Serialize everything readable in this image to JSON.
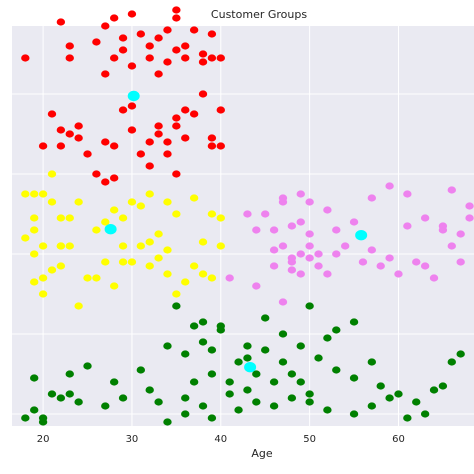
{
  "chart_data": {
    "type": "scatter",
    "title": "Customer Groups",
    "xlabel": "Age",
    "ylabel": "",
    "xlim": [
      16.5,
      68.5
    ],
    "x_ticks": [
      20,
      30,
      40,
      50,
      60
    ],
    "x_tick_labels": [
      "20",
      "30",
      "40",
      "50",
      "60"
    ],
    "ylim": [
      0,
      100
    ],
    "y_gridlines": [
      3,
      23,
      43,
      63,
      83
    ],
    "y_tick_labels_visible": false,
    "grid": true,
    "legend": "none",
    "series": [
      {
        "color": "#ff0000",
        "points": [
          [
            18,
            92
          ],
          [
            22,
            101
          ],
          [
            23,
            95
          ],
          [
            23,
            92
          ],
          [
            26,
            96
          ],
          [
            27,
            100
          ],
          [
            27,
            88
          ],
          [
            28,
            102
          ],
          [
            28,
            92
          ],
          [
            29,
            97
          ],
          [
            29,
            94
          ],
          [
            30,
            90
          ],
          [
            30,
            103
          ],
          [
            31,
            98
          ],
          [
            32,
            95
          ],
          [
            32,
            92
          ],
          [
            33,
            97
          ],
          [
            33,
            88
          ],
          [
            34,
            99
          ],
          [
            34,
            91
          ],
          [
            35,
            104
          ],
          [
            35,
            102
          ],
          [
            35,
            94
          ],
          [
            36,
            92
          ],
          [
            36,
            95
          ],
          [
            37,
            99
          ],
          [
            38,
            93
          ],
          [
            38,
            91
          ],
          [
            39,
            92
          ],
          [
            39,
            98
          ],
          [
            40,
            92
          ],
          [
            40,
            79
          ],
          [
            21,
            78
          ],
          [
            22,
            74
          ],
          [
            23,
            73
          ],
          [
            24,
            72
          ],
          [
            20,
            70
          ],
          [
            22,
            70
          ],
          [
            24,
            75
          ],
          [
            25,
            68
          ],
          [
            27,
            71
          ],
          [
            28,
            70
          ],
          [
            29,
            79
          ],
          [
            30,
            80
          ],
          [
            30,
            74
          ],
          [
            31,
            68
          ],
          [
            32,
            65
          ],
          [
            32,
            71
          ],
          [
            33,
            75
          ],
          [
            33,
            73
          ],
          [
            34,
            71
          ],
          [
            34,
            68
          ],
          [
            35,
            77
          ],
          [
            35,
            75
          ],
          [
            35,
            63
          ],
          [
            36,
            79
          ],
          [
            36,
            72
          ],
          [
            37,
            78
          ],
          [
            38,
            83
          ],
          [
            39,
            70
          ],
          [
            39,
            72
          ],
          [
            40,
            70
          ],
          [
            26,
            63
          ],
          [
            27,
            61
          ],
          [
            28,
            62
          ]
        ]
      },
      {
        "color": "#ffff00",
        "points": [
          [
            18,
            58
          ],
          [
            19,
            58
          ],
          [
            19,
            52
          ],
          [
            20,
            58
          ],
          [
            19,
            49
          ],
          [
            18,
            47
          ],
          [
            19,
            43
          ],
          [
            20,
            45
          ],
          [
            21,
            56
          ],
          [
            22,
            52
          ],
          [
            23,
            52
          ],
          [
            24,
            56
          ],
          [
            22,
            45
          ],
          [
            23,
            45
          ],
          [
            26,
            49
          ],
          [
            27,
            51
          ],
          [
            28,
            54
          ],
          [
            29,
            52
          ],
          [
            30,
            56
          ],
          [
            31,
            55
          ],
          [
            32,
            58
          ],
          [
            34,
            56
          ],
          [
            33,
            48
          ],
          [
            32,
            46
          ],
          [
            34,
            44
          ],
          [
            35,
            53
          ],
          [
            37,
            57
          ],
          [
            38,
            46
          ],
          [
            39,
            53
          ],
          [
            40,
            52
          ],
          [
            37,
            40
          ],
          [
            38,
            38
          ],
          [
            39,
            37
          ],
          [
            40,
            45
          ],
          [
            19,
            36
          ],
          [
            20,
            33
          ],
          [
            21,
            39
          ],
          [
            22,
            40
          ],
          [
            27,
            41
          ],
          [
            26,
            37
          ],
          [
            28,
            35
          ],
          [
            29,
            41
          ],
          [
            31,
            45
          ],
          [
            32,
            40
          ],
          [
            33,
            42
          ],
          [
            34,
            38
          ],
          [
            35,
            33
          ],
          [
            36,
            36
          ],
          [
            20,
            37
          ],
          [
            22,
            45
          ],
          [
            24,
            30
          ],
          [
            25,
            37
          ],
          [
            21,
            63
          ],
          [
            30,
            41
          ],
          [
            29,
            45
          ]
        ]
      },
      {
        "color": "#ee82ee",
        "points": [
          [
            47,
            57
          ],
          [
            49,
            58
          ],
          [
            50,
            56
          ],
          [
            52,
            54
          ],
          [
            53,
            49
          ],
          [
            55,
            51
          ],
          [
            57,
            57
          ],
          [
            59,
            60
          ],
          [
            61,
            58
          ],
          [
            61,
            50
          ],
          [
            63,
            52
          ],
          [
            65,
            50
          ],
          [
            66,
            59
          ],
          [
            67,
            48
          ],
          [
            68,
            52
          ],
          [
            44,
            49
          ],
          [
            43,
            53
          ],
          [
            45,
            53
          ],
          [
            46,
            40
          ],
          [
            46,
            44
          ],
          [
            47,
            45
          ],
          [
            48,
            41
          ],
          [
            48,
            39
          ],
          [
            49,
            43
          ],
          [
            50,
            45
          ],
          [
            51,
            43
          ],
          [
            51,
            40
          ],
          [
            52,
            38
          ],
          [
            53,
            43
          ],
          [
            54,
            45
          ],
          [
            56,
            41
          ],
          [
            57,
            44
          ],
          [
            58,
            40
          ],
          [
            59,
            42
          ],
          [
            60,
            38
          ],
          [
            62,
            41
          ],
          [
            63,
            40
          ],
          [
            64,
            37
          ],
          [
            65,
            49
          ],
          [
            66,
            45
          ],
          [
            67,
            41
          ],
          [
            68,
            55
          ],
          [
            41,
            37
          ],
          [
            44,
            35
          ],
          [
            47,
            31
          ],
          [
            48,
            42
          ],
          [
            49,
            51
          ],
          [
            50,
            48
          ],
          [
            46,
            49
          ],
          [
            47,
            56
          ],
          [
            49,
            38
          ],
          [
            50,
            42
          ],
          [
            48,
            50
          ]
        ]
      },
      {
        "color": "#008000",
        "points": [
          [
            18,
            2
          ],
          [
            19,
            4
          ],
          [
            20,
            1
          ],
          [
            20,
            2
          ],
          [
            22,
            7
          ],
          [
            23,
            8
          ],
          [
            25,
            15
          ],
          [
            27,
            5
          ],
          [
            29,
            7
          ],
          [
            31,
            14
          ],
          [
            33,
            6
          ],
          [
            34,
            20
          ],
          [
            36,
            18
          ],
          [
            37,
            25
          ],
          [
            38,
            21
          ],
          [
            39,
            19
          ],
          [
            40,
            25
          ],
          [
            41,
            11
          ],
          [
            42,
            16
          ],
          [
            43,
            17
          ],
          [
            44,
            13
          ],
          [
            45,
            19
          ],
          [
            46,
            11
          ],
          [
            47,
            16
          ],
          [
            48,
            13
          ],
          [
            49,
            11
          ],
          [
            50,
            8
          ],
          [
            51,
            17
          ],
          [
            52,
            22
          ],
          [
            53,
            14
          ],
          [
            55,
            12
          ],
          [
            57,
            16
          ],
          [
            58,
            10
          ],
          [
            59,
            7
          ],
          [
            60,
            8
          ],
          [
            62,
            6
          ],
          [
            64,
            9
          ],
          [
            65,
            10
          ],
          [
            66,
            16
          ],
          [
            67,
            18
          ],
          [
            36,
            7
          ],
          [
            38,
            5
          ],
          [
            34,
            1
          ],
          [
            36,
            3
          ],
          [
            39,
            2
          ],
          [
            42,
            4
          ],
          [
            44,
            6
          ],
          [
            46,
            5
          ],
          [
            48,
            7
          ],
          [
            50,
            6
          ],
          [
            52,
            4
          ],
          [
            55,
            3
          ],
          [
            57,
            5
          ],
          [
            61,
            2
          ],
          [
            63,
            3
          ],
          [
            35,
            30
          ],
          [
            38,
            26
          ],
          [
            40,
            24
          ],
          [
            45,
            27
          ],
          [
            50,
            30
          ],
          [
            55,
            26
          ],
          [
            47,
            23
          ],
          [
            49,
            20
          ],
          [
            53,
            24
          ],
          [
            43,
            20
          ],
          [
            39,
            13
          ],
          [
            37,
            11
          ],
          [
            32,
            9
          ],
          [
            28,
            11
          ],
          [
            23,
            13
          ],
          [
            21,
            8
          ],
          [
            19,
            12
          ],
          [
            24,
            6
          ],
          [
            41,
            8
          ],
          [
            43,
            9
          ]
        ]
      },
      {
        "color": "#00ffff",
        "points": [
          [
            30.2,
            82.5
          ],
          [
            27.6,
            49.2
          ],
          [
            55.8,
            47.7
          ],
          [
            43.3,
            14.7
          ]
        ]
      }
    ]
  }
}
